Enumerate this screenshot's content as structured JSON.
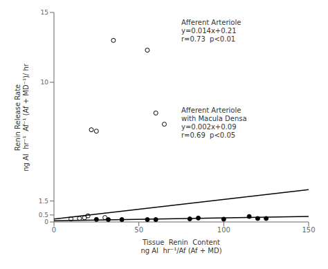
{
  "chart_data": {
    "type": "scatter",
    "xlabel": "Tissue  Renin  Content\nng AI  hr⁻¹/Af (Af + MD)",
    "ylabel": "Renin Release Rate\nng AI  hr⁻¹  Af⁻¹ (Af + MD⁻¹)/ hr",
    "annotations": [
      "Afferent Arteriole\ny=0.014x+0.21\nr=0.73  p<0.01",
      "Afferent Arteriole\nwith Macula Densa\ny=0.002x+0.09\nr=0.69  p<0.05"
    ],
    "series": [
      {
        "type": "scatter",
        "marker": "open_circle",
        "color": "#000000",
        "x": [
          10,
          15,
          18,
          20,
          22,
          25,
          30,
          35,
          55,
          60,
          65
        ],
        "values": [
          0.22,
          0.26,
          0.3,
          0.44,
          6.6,
          6.5,
          0.32,
          13.0,
          12.3,
          7.8,
          7.0
        ]
      },
      {
        "type": "scatter",
        "marker": "circle",
        "color": "#000000",
        "x": [
          25,
          32,
          40,
          55,
          60,
          80,
          85,
          100,
          115,
          120,
          125
        ],
        "values": [
          0.18,
          0.17,
          0.17,
          0.17,
          0.17,
          0.22,
          0.28,
          0.2,
          0.39,
          0.25,
          0.25
        ]
      },
      {
        "type": "line",
        "line_style": "solid",
        "color": "#000000",
        "x": [
          0,
          150
        ],
        "values": [
          0.21,
          2.31
        ]
      },
      {
        "type": "line",
        "line_style": "solid",
        "color": "#000000",
        "x": [
          0,
          150
        ],
        "values": [
          0.09,
          0.39
        ]
      }
    ],
    "xlim": [
      0,
      150
    ],
    "ylim": [
      0,
      15
    ],
    "xticks": [
      0,
      50,
      100,
      150
    ],
    "yticks": [
      0,
      0.5,
      1.5,
      10,
      15
    ],
    "grid": false
  }
}
